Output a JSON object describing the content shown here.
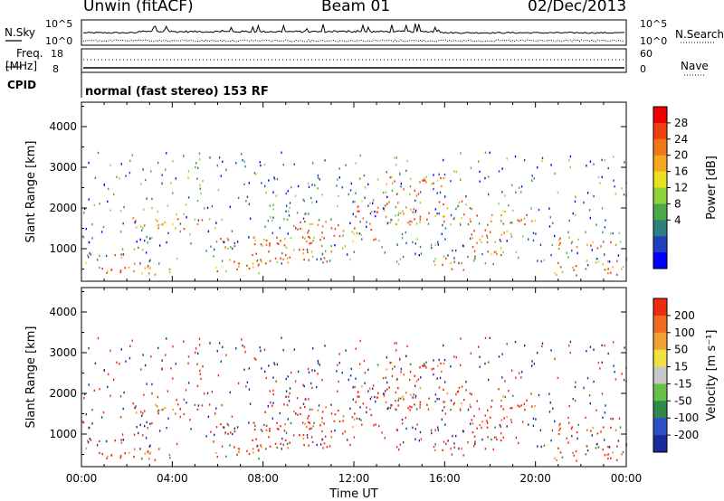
{
  "header": {
    "station": "Unwin (fitACF)",
    "beam": "Beam 01",
    "date": "02/Dec/2013"
  },
  "left_labels": {
    "nsky": "N.Sky",
    "freq_top": "Freq.",
    "freq_unit": "[MHz]",
    "cpid": "CPID"
  },
  "right_labels": {
    "nsearch": "N.Search",
    "nave": "Nave"
  },
  "mode_text": "normal (fast stereo) 153 RF",
  "chart_data": [
    {
      "type": "line",
      "name": "noise",
      "left_axis": {
        "ticks": [
          "10^5",
          "10^0"
        ]
      },
      "right_axis": {
        "ticks": [
          "10^5",
          "10^0"
        ]
      },
      "legend": [
        {
          "label": "N.Sky",
          "style": "solid"
        },
        {
          "label": "N.Search",
          "style": "dotted"
        }
      ]
    },
    {
      "type": "line",
      "name": "frequency-nave",
      "left_axis": {
        "ticks": [
          "18",
          "8"
        ]
      },
      "right_axis": {
        "ticks": [
          "60",
          "0"
        ]
      },
      "legend": [
        {
          "label": "Freq. [MHz]",
          "style": "solid"
        },
        {
          "label": "Nave",
          "style": "dotted"
        }
      ]
    },
    {
      "type": "heatmap",
      "name": "power",
      "ylabel": "Slant Range [km]",
      "yticks": [
        1000,
        2000,
        3000,
        4000
      ],
      "ylim": [
        200,
        4600
      ],
      "xlim": [
        0,
        24
      ],
      "colorbar": {
        "label": "Power [dB]",
        "ticks": [
          "28",
          "24",
          "20",
          "16",
          "12",
          "8",
          "4"
        ],
        "colors": [
          "#0000ff",
          "#2040c0",
          "#2f7f7f",
          "#4da84d",
          "#8fd23a",
          "#e8e020",
          "#f5a820",
          "#f07818",
          "#f04010",
          "#ee0000"
        ]
      }
    },
    {
      "type": "heatmap",
      "name": "velocity",
      "ylabel": "Slant Range [km]",
      "xlabel": "Time UT",
      "yticks": [
        1000,
        2000,
        3000,
        4000
      ],
      "ylim": [
        200,
        4600
      ],
      "xlim": [
        0,
        24
      ],
      "xticks": [
        "00:00",
        "04:00",
        "08:00",
        "12:00",
        "16:00",
        "20:00",
        "00:00"
      ],
      "colorbar": {
        "label": "Velocity [m s⁻¹]",
        "ticks": [
          "200",
          "100",
          "50",
          "15",
          "-15",
          "-50",
          "-100",
          "-200"
        ],
        "colors": [
          "#1a2a9a",
          "#2a50c8",
          "#2f8a4a",
          "#66c04a",
          "#c8c8c8",
          "#f0e040",
          "#f2a030",
          "#f06a20",
          "#ee2a10"
        ]
      }
    }
  ],
  "echo_bands": [
    {
      "t0": 0.0,
      "t1": 4.0,
      "r0": 380,
      "r1": 700
    },
    {
      "t0": 0.0,
      "t1": 4.0,
      "r0": 800,
      "r1": 900
    },
    {
      "t0": 2.0,
      "t1": 5.5,
      "r0": 1500,
      "r1": 1800
    },
    {
      "t0": 5.5,
      "t1": 8.0,
      "r0": 400,
      "r1": 750
    },
    {
      "t0": 6.0,
      "t1": 9.0,
      "r0": 1000,
      "r1": 1300
    },
    {
      "t0": 7.5,
      "t1": 11.0,
      "r0": 600,
      "r1": 1300
    },
    {
      "t0": 9.0,
      "t1": 13.0,
      "r0": 1200,
      "r1": 1700
    },
    {
      "t0": 12.0,
      "t1": 17.5,
      "r0": 1600,
      "r1": 2200
    },
    {
      "t0": 13.0,
      "t1": 16.0,
      "r0": 2300,
      "r1": 2800
    },
    {
      "t0": 15.5,
      "t1": 17.0,
      "r0": 500,
      "r1": 800
    },
    {
      "t0": 17.0,
      "t1": 19.0,
      "r0": 800,
      "r1": 1500
    },
    {
      "t0": 18.0,
      "t1": 20.0,
      "r0": 1600,
      "r1": 2000
    },
    {
      "t0": 20.5,
      "t1": 24.0,
      "r0": 350,
      "r1": 750
    },
    {
      "t0": 21.0,
      "t1": 24.0,
      "r0": 1000,
      "r1": 1300
    }
  ]
}
